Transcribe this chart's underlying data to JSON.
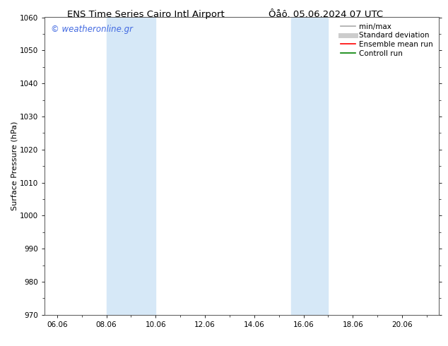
{
  "title_left": "ENS Time Series Cairo Intl Airport",
  "title_right": "Ôåô. 05.06.2024 07 UTC",
  "ylabel": "Surface Pressure (hPa)",
  "ylim": [
    970,
    1060
  ],
  "yticks": [
    970,
    980,
    990,
    1000,
    1010,
    1020,
    1030,
    1040,
    1050,
    1060
  ],
  "xlim_start": 5.5,
  "xlim_end": 21.5,
  "xtick_labels": [
    "06.06",
    "08.06",
    "10.06",
    "12.06",
    "14.06",
    "16.06",
    "18.06",
    "20.06"
  ],
  "xtick_positions": [
    6.0,
    8.0,
    10.0,
    12.0,
    14.0,
    16.0,
    18.0,
    20.0
  ],
  "shaded_bands": [
    {
      "x_start": 8.0,
      "x_end": 10.0
    },
    {
      "x_start": 15.5,
      "x_end": 17.0
    }
  ],
  "shaded_color": "#d6e8f7",
  "watermark_text": "© weatheronline.gr",
  "watermark_color": "#4169e1",
  "legend_entries": [
    {
      "label": "min/max",
      "color": "#aaaaaa",
      "linewidth": 1.2,
      "linestyle": "-"
    },
    {
      "label": "Standard deviation",
      "color": "#cccccc",
      "linewidth": 5,
      "linestyle": "-"
    },
    {
      "label": "Ensemble mean run",
      "color": "#ff0000",
      "linewidth": 1.2,
      "linestyle": "-"
    },
    {
      "label": "Controll run",
      "color": "#008000",
      "linewidth": 1.2,
      "linestyle": "-"
    }
  ],
  "background_color": "#ffffff",
  "grid_color": "#dddddd",
  "spine_color": "#555555",
  "title_fontsize": 9.5,
  "axis_label_fontsize": 8,
  "tick_fontsize": 7.5,
  "watermark_fontsize": 8.5,
  "legend_fontsize": 7.5
}
